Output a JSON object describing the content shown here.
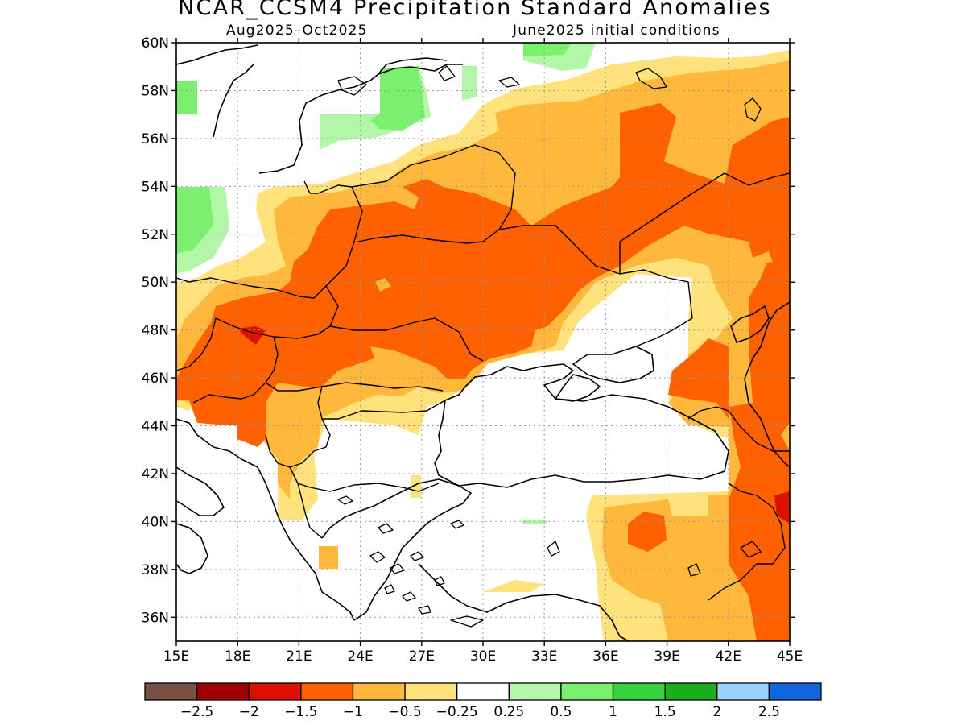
{
  "title": "NCAR_CCSM4 Precipitation Standard Anomalies",
  "subtitle_left": "Aug2025–Oct2025",
  "subtitle_right": "June2025 initial conditions",
  "map": {
    "lon_range": [
      15,
      45
    ],
    "lat_range": [
      35,
      60
    ],
    "lon_ticks": [
      "15E",
      "18E",
      "21E",
      "24E",
      "27E",
      "30E",
      "33E",
      "36E",
      "39E",
      "42E",
      "45E"
    ],
    "lat_ticks": [
      "36N",
      "38N",
      "40N",
      "42N",
      "44N",
      "46N",
      "48N",
      "50N",
      "52N",
      "54N",
      "56N",
      "58N",
      "60N"
    ],
    "grid": "dotted"
  },
  "colorbar": {
    "colors": [
      "#7b5044",
      "#a10000",
      "#dd1100",
      "#ff6100",
      "#ffb83c",
      "#ffe27c",
      "#ffffff",
      "#b2f7a7",
      "#7bf06f",
      "#39d23f",
      "#1aaf1e",
      "#9cd2ff",
      "#1165dd"
    ],
    "labels": [
      "−2.5",
      "−2",
      "−1.5",
      "−1",
      "−0.5",
      "−0.25",
      "0.25",
      "0.5",
      "1",
      "1.5",
      "2",
      "2.5"
    ]
  }
}
